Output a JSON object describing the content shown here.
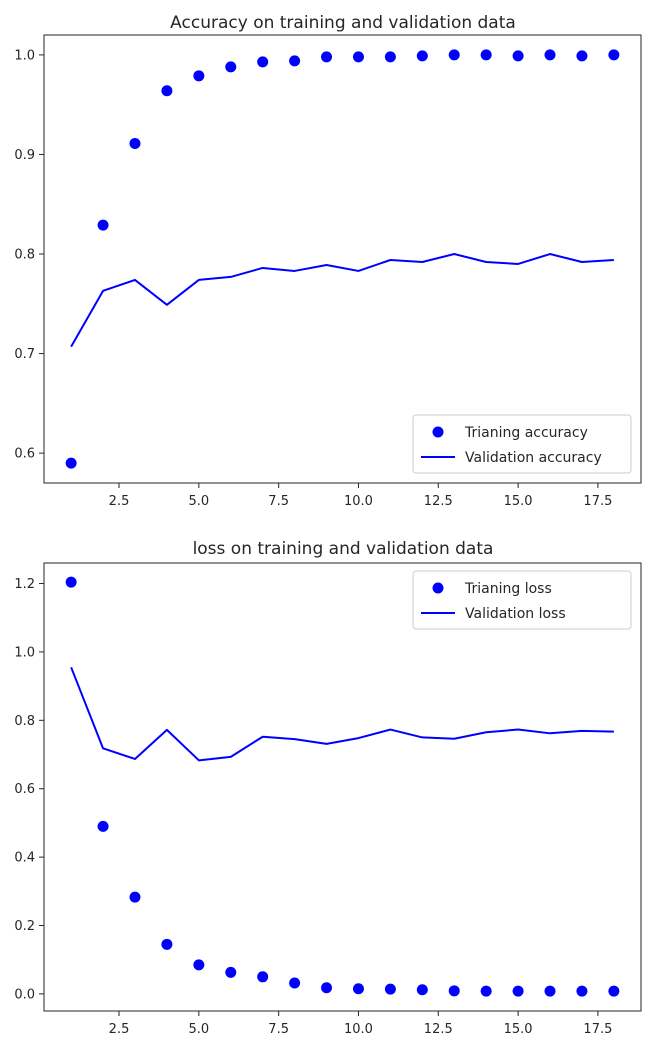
{
  "chart_data": [
    {
      "type": "scatter+line",
      "title": "Accuracy on training and validation data",
      "xlabel": "",
      "ylabel": "",
      "xlim": [
        0.15,
        18.85
      ],
      "ylim": [
        0.57,
        1.02
      ],
      "xticks": [
        2.5,
        5.0,
        7.5,
        10.0,
        12.5,
        15.0,
        17.5
      ],
      "xtick_labels": [
        "2.5",
        "5.0",
        "7.5",
        "10.0",
        "12.5",
        "15.0",
        "17.5"
      ],
      "yticks": [
        0.6,
        0.7,
        0.8,
        0.9,
        1.0
      ],
      "ytick_labels": [
        "0.6",
        "0.7",
        "0.8",
        "0.9",
        "1.0"
      ],
      "grid": false,
      "legend": {
        "position": "lower-right"
      },
      "series": [
        {
          "name": "Trianing accuracy",
          "style": "points",
          "color": "#0000ff",
          "x": [
            1,
            2,
            3,
            4,
            5,
            6,
            7,
            8,
            9,
            10,
            11,
            12,
            13,
            14,
            15,
            16,
            17,
            18
          ],
          "y": [
            0.59,
            0.829,
            0.911,
            0.964,
            0.979,
            0.988,
            0.993,
            0.994,
            0.998,
            0.998,
            0.998,
            0.999,
            1.0,
            1.0,
            0.999,
            1.0,
            0.999,
            1.0
          ]
        },
        {
          "name": "Validation accuracy",
          "style": "line",
          "color": "#0000ff",
          "x": [
            1,
            2,
            3,
            4,
            5,
            6,
            7,
            8,
            9,
            10,
            11,
            12,
            13,
            14,
            15,
            16,
            17,
            18
          ],
          "y": [
            0.707,
            0.763,
            0.774,
            0.749,
            0.774,
            0.777,
            0.786,
            0.783,
            0.789,
            0.783,
            0.794,
            0.792,
            0.8,
            0.792,
            0.79,
            0.8,
            0.792,
            0.794
          ]
        }
      ]
    },
    {
      "type": "scatter+line",
      "title": "loss on training and validation data",
      "xlabel": "",
      "ylabel": "",
      "xlim": [
        0.15,
        18.85
      ],
      "ylim": [
        -0.05,
        1.26
      ],
      "xticks": [
        2.5,
        5.0,
        7.5,
        10.0,
        12.5,
        15.0,
        17.5
      ],
      "xtick_labels": [
        "2.5",
        "5.0",
        "7.5",
        "10.0",
        "12.5",
        "15.0",
        "17.5"
      ],
      "yticks": [
        0.0,
        0.2,
        0.4,
        0.6,
        0.8,
        1.0,
        1.2
      ],
      "ytick_labels": [
        "0.0",
        "0.2",
        "0.4",
        "0.6",
        "0.8",
        "1.0",
        "1.2"
      ],
      "grid": false,
      "legend": {
        "position": "upper-right"
      },
      "series": [
        {
          "name": "Trianing loss",
          "style": "points",
          "color": "#0000ff",
          "x": [
            1,
            2,
            3,
            4,
            5,
            6,
            7,
            8,
            9,
            10,
            11,
            12,
            13,
            14,
            15,
            16,
            17,
            18
          ],
          "y": [
            1.204,
            0.49,
            0.283,
            0.145,
            0.085,
            0.063,
            0.05,
            0.032,
            0.018,
            0.015,
            0.014,
            0.012,
            0.009,
            0.008,
            0.008,
            0.008,
            0.008,
            0.008
          ]
        },
        {
          "name": "Validation loss",
          "style": "line",
          "color": "#0000ff",
          "x": [
            1,
            2,
            3,
            4,
            5,
            6,
            7,
            8,
            9,
            10,
            11,
            12,
            13,
            14,
            15,
            16,
            17,
            18
          ],
          "y": [
            0.955,
            0.718,
            0.687,
            0.772,
            0.683,
            0.693,
            0.752,
            0.745,
            0.731,
            0.748,
            0.773,
            0.75,
            0.746,
            0.765,
            0.773,
            0.762,
            0.769,
            0.767
          ]
        }
      ]
    }
  ]
}
